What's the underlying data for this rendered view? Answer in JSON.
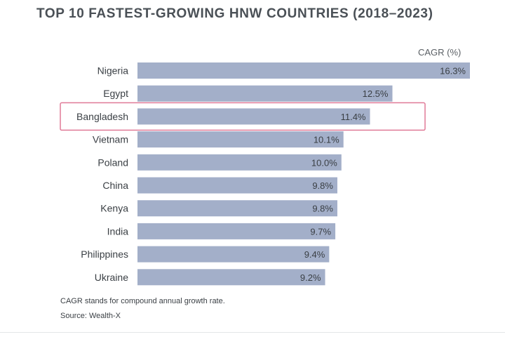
{
  "chart_data": {
    "type": "bar",
    "orientation": "horizontal",
    "title": "TOP 10 FASTEST-GROWING HNW COUNTRIES (2018–2023)",
    "unit_label": "CAGR (%)",
    "categories": [
      "Nigeria",
      "Egypt",
      "Bangladesh",
      "Vietnam",
      "Poland",
      "China",
      "Kenya",
      "India",
      "Philippines",
      "Ukraine"
    ],
    "values": [
      16.3,
      12.5,
      11.4,
      10.1,
      10.0,
      9.8,
      9.8,
      9.7,
      9.4,
      9.2
    ],
    "value_labels": [
      "16.3%",
      "12.5%",
      "11.4%",
      "10.1%",
      "10.0%",
      "9.8%",
      "9.8%",
      "9.7%",
      "9.4%",
      "9.2%"
    ],
    "highlighted_category": "Bangladesh",
    "xlim": [
      0,
      16.3
    ],
    "grid": false,
    "legend": "none",
    "bar_color": "#a3afc9",
    "highlight_color": "#e07a97"
  },
  "notes": {
    "definition": "CAGR stands for compound annual growth rate.",
    "source": "Source: Wealth-X"
  }
}
